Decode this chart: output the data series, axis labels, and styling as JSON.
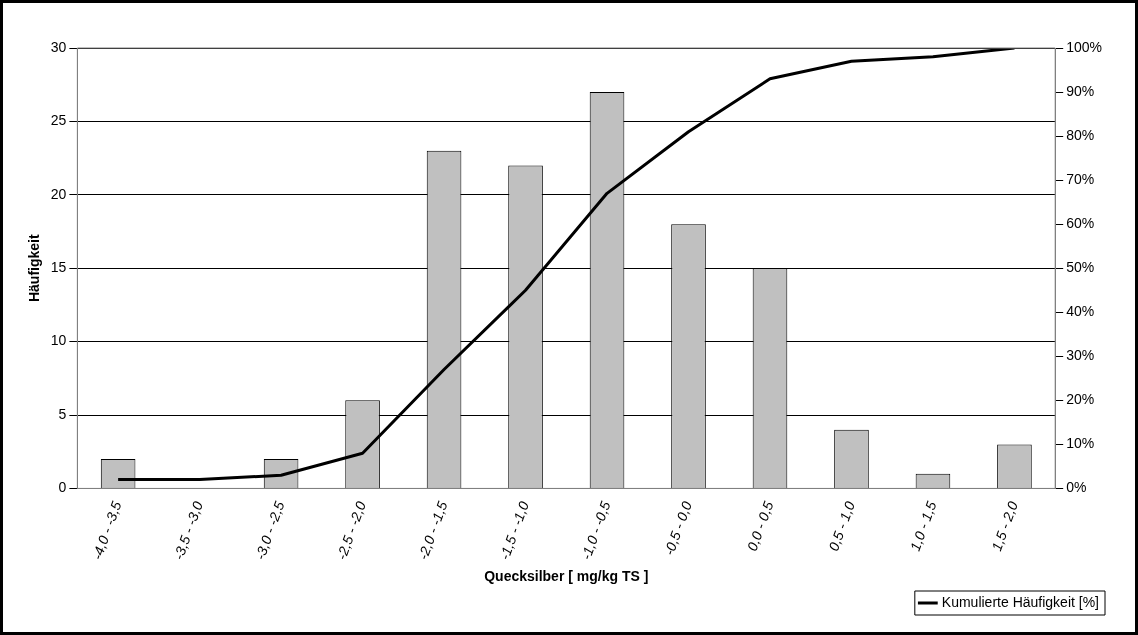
{
  "chart_data": {
    "type": "bar",
    "xlabel": "Quecksilber [ mg/kg TS ]",
    "ylabel": "Häufigkeit",
    "categories": [
      "-4,0 - -3,5",
      "-3,5 - -3,0",
      "-3,0 - -2,5",
      "-2,5 - -2,0",
      "-2,0 - -1,5",
      "-1,5 - -1,0",
      "-1,0 - -0,5",
      "-0,5 - 0,0",
      "0,0 - 0,5",
      "0,5 - 1,0",
      "1,0 - 1,5",
      "1,5 - 2,0"
    ],
    "series": [
      {
        "color": "#c0c0c0",
        "values": [
          2,
          0,
          2,
          6,
          23,
          22,
          27,
          18,
          15,
          4,
          1,
          3
        ]
      },
      {
        "type": "line",
        "name": "Kumulierte Häufigkeit [%]",
        "color": "#000000",
        "axis": "y2",
        "values": [
          2,
          2,
          3,
          8,
          27,
          45,
          67,
          81,
          93,
          97,
          98,
          100
        ]
      }
    ],
    "ylim": [
      0,
      30
    ],
    "yticks": [
      0,
      5,
      10,
      15,
      20,
      25,
      30
    ],
    "y2lim": [
      0,
      100
    ],
    "y2ticks": [
      {
        "value": 0,
        "label": "0%"
      },
      {
        "value": 10,
        "label": "10%"
      },
      {
        "value": 20,
        "label": "20%"
      },
      {
        "value": 30,
        "label": "30%"
      },
      {
        "value": 40,
        "label": "40%"
      },
      {
        "value": 50,
        "label": "50%"
      },
      {
        "value": 60,
        "label": "60%"
      },
      {
        "value": 70,
        "label": "70%"
      },
      {
        "value": 80,
        "label": "80%"
      },
      {
        "value": 90,
        "label": "90%"
      },
      {
        "value": 100,
        "label": "100%"
      }
    ],
    "grid": "y",
    "legend": "bottom right",
    "marker": "none",
    "line_style": "solid"
  }
}
